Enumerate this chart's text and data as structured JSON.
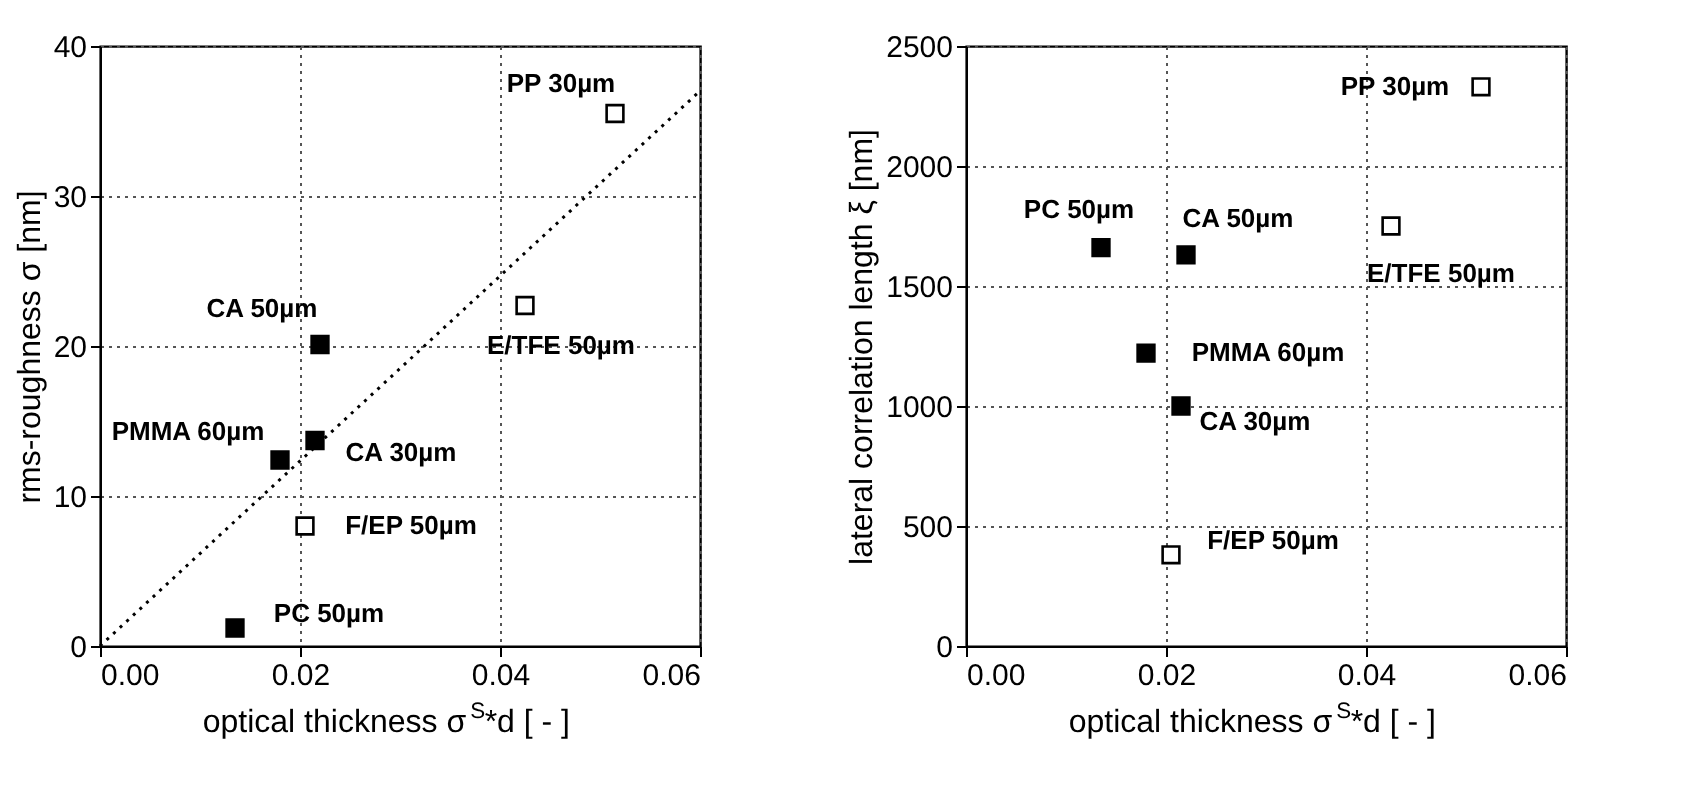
{
  "chart_data": [
    {
      "type": "scatter",
      "xlabel": "optical thickness σ$^{S}$*d [ - ]",
      "ylabel": "rms-roughness σ [nm]",
      "xlim": [
        0,
        0.06
      ],
      "xticks": [
        {
          "value": 0,
          "label": "0.00"
        },
        {
          "value": 0.02,
          "label": "0.02"
        },
        {
          "value": 0.04,
          "label": "0.04"
        },
        {
          "value": 0.06,
          "label": "0.06"
        }
      ],
      "ylim": [
        0,
        40
      ],
      "yticks": [
        0,
        10,
        20,
        30,
        40
      ],
      "grid": true,
      "marker": "square",
      "series": [
        {
          "color": "#000000",
          "x": [
            0.0135,
            0.018,
            0.0215,
            0.022
          ],
          "values": [
            1.2,
            12.4,
            13.7,
            20.1
          ]
        },
        {
          "color": "#000000",
          "x": [
            0.0205,
            0.0425,
            0.0515
          ],
          "values": [
            8.0,
            22.7,
            35.5
          ]
        },
        {
          "type": "line",
          "marker": "none",
          "line_style": "dotted",
          "color": "#000000",
          "x": [
            0,
            0.06
          ],
          "values": [
            0,
            37
          ]
        }
      ],
      "annotations": [
        {
          "text": "PC 50µm",
          "x": 0.0135,
          "y": 1.2
        },
        {
          "text": "PMMA 60µm",
          "x": 0.018,
          "y": 12.4
        },
        {
          "text": "CA 30µm",
          "x": 0.0215,
          "y": 13.7
        },
        {
          "text": "CA 50µm",
          "x": 0.022,
          "y": 20.1
        },
        {
          "text": "F/EP 50µm",
          "x": 0.0205,
          "y": 8.0
        },
        {
          "text": "E/TFE 50µm",
          "x": 0.0425,
          "y": 22.7
        },
        {
          "text": "PP 30µm",
          "x": 0.0515,
          "y": 35.5
        }
      ]
    },
    {
      "type": "scatter",
      "xlabel": "optical thickness σ$^{S}$*d [ - ]",
      "ylabel": "lateral correlation length ξ [nm]",
      "xlim": [
        0,
        0.06
      ],
      "xticks": [
        {
          "value": 0,
          "label": "0.00"
        },
        {
          "value": 0.02,
          "label": "0.02"
        },
        {
          "value": 0.04,
          "label": "0.04"
        },
        {
          "value": 0.06,
          "label": "0.06"
        }
      ],
      "ylim": [
        0,
        2500
      ],
      "yticks": [
        0,
        500,
        1000,
        1500,
        2000,
        2500
      ],
      "grid": true,
      "marker": "square",
      "series": [
        {
          "color": "#000000",
          "x": [
            0.0135,
            0.018,
            0.0215,
            0.022
          ],
          "values": [
            1660,
            1220,
            1000,
            1630
          ]
        },
        {
          "color": "#000000",
          "x": [
            0.0205,
            0.0425,
            0.0515
          ],
          "values": [
            380,
            1750,
            2330
          ]
        }
      ],
      "annotations": [
        {
          "text": "PC 50µm",
          "x": 0.0135,
          "y": 1660
        },
        {
          "text": "PMMA 60µm",
          "x": 0.018,
          "y": 1220
        },
        {
          "text": "CA 30µm",
          "x": 0.0215,
          "y": 1000
        },
        {
          "text": "CA 50µm",
          "x": 0.022,
          "y": 1630
        },
        {
          "text": "F/EP 50µm",
          "x": 0.0205,
          "y": 380
        },
        {
          "text": "E/TFE 50µm",
          "x": 0.0425,
          "y": 1750
        },
        {
          "text": "PP 30µm",
          "x": 0.0515,
          "y": 2330
        }
      ]
    }
  ]
}
